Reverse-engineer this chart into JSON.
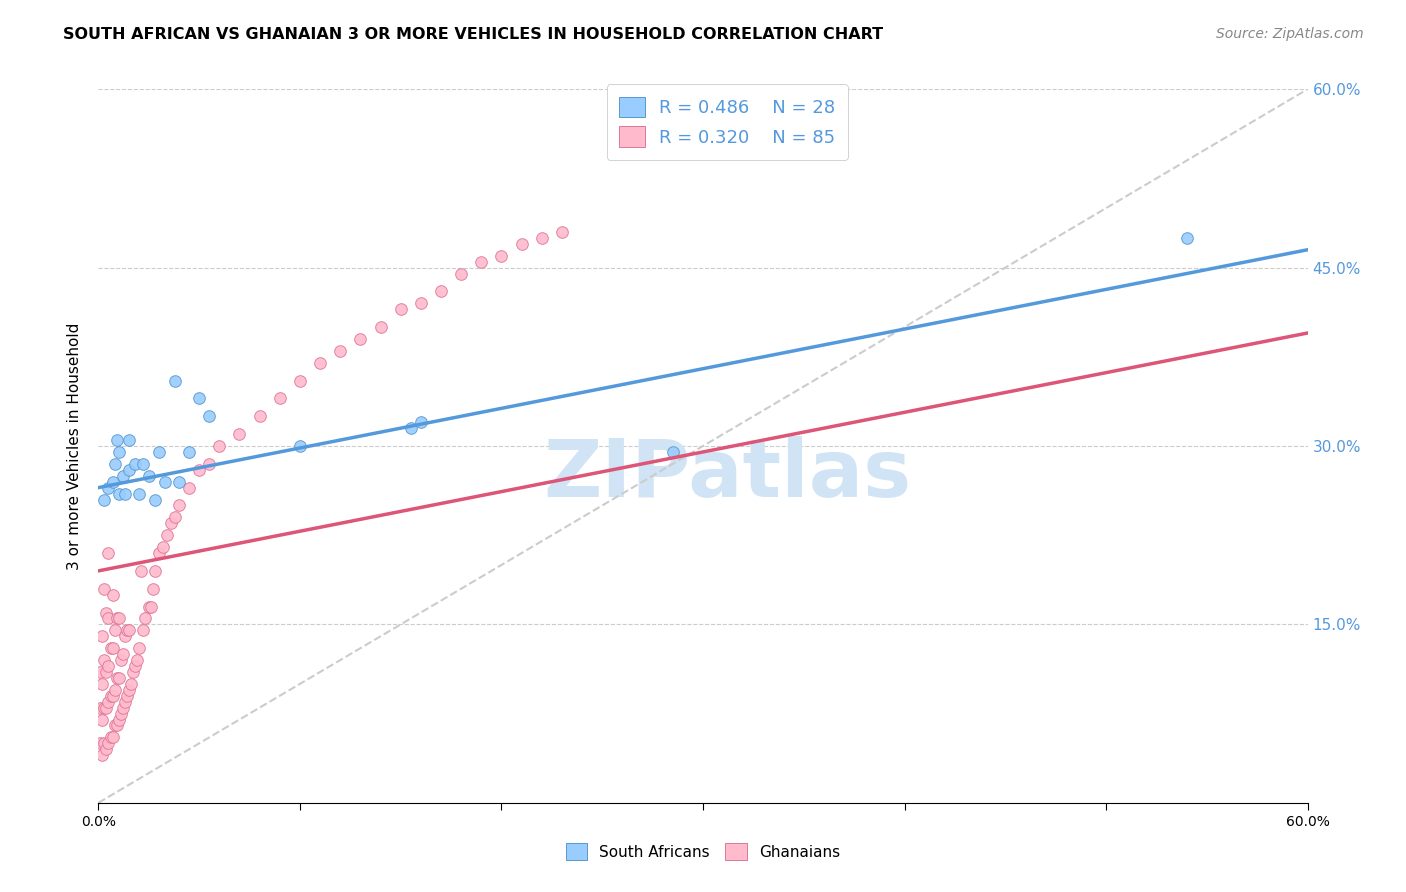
{
  "title": "SOUTH AFRICAN VS GHANAIAN 3 OR MORE VEHICLES IN HOUSEHOLD CORRELATION CHART",
  "source": "Source: ZipAtlas.com",
  "ylabel": "3 or more Vehicles in Household",
  "xmin": 0.0,
  "xmax": 0.6,
  "ymin": 0.0,
  "ymax": 0.6,
  "xticks": [
    0.0,
    0.1,
    0.2,
    0.3,
    0.4,
    0.5,
    0.6
  ],
  "xtick_labels": [
    "0.0%",
    "",
    "",
    "",
    "",
    "",
    "60.0%"
  ],
  "right_yticks": [
    0.0,
    0.15,
    0.3,
    0.45,
    0.6
  ],
  "right_ytick_labels": [
    "",
    "15.0%",
    "30.0%",
    "45.0%",
    "60.0%"
  ],
  "background_color": "#ffffff",
  "grid_color": "#cccccc",
  "sa_color": "#99ccff",
  "sa_edge_color": "#5599cc",
  "gh_color": "#ffbbcc",
  "gh_edge_color": "#dd7799",
  "sa_line_color": "#5599dd",
  "gh_line_color": "#dd5577",
  "diagonal_color": "#cccccc",
  "sa_R": 0.486,
  "sa_N": 28,
  "gh_R": 0.32,
  "gh_N": 85,
  "watermark_color": "#d0e4f5",
  "sa_line_start_y": 0.265,
  "sa_line_end_y": 0.465,
  "gh_line_start_y": 0.195,
  "gh_line_end_y": 0.395,
  "sa_scatter_x": [
    0.003,
    0.005,
    0.007,
    0.008,
    0.009,
    0.01,
    0.01,
    0.012,
    0.013,
    0.015,
    0.015,
    0.018,
    0.02,
    0.022,
    0.025,
    0.028,
    0.03,
    0.033,
    0.038,
    0.04,
    0.045,
    0.05,
    0.055,
    0.1,
    0.155,
    0.16,
    0.285,
    0.54
  ],
  "sa_scatter_y": [
    0.255,
    0.265,
    0.27,
    0.285,
    0.305,
    0.26,
    0.295,
    0.275,
    0.26,
    0.28,
    0.305,
    0.285,
    0.26,
    0.285,
    0.275,
    0.255,
    0.295,
    0.27,
    0.355,
    0.27,
    0.295,
    0.34,
    0.325,
    0.3,
    0.315,
    0.32,
    0.295,
    0.475
  ],
  "gh_scatter_x": [
    0.001,
    0.001,
    0.001,
    0.002,
    0.002,
    0.002,
    0.002,
    0.003,
    0.003,
    0.003,
    0.003,
    0.004,
    0.004,
    0.004,
    0.004,
    0.005,
    0.005,
    0.005,
    0.005,
    0.005,
    0.006,
    0.006,
    0.006,
    0.007,
    0.007,
    0.007,
    0.007,
    0.008,
    0.008,
    0.008,
    0.009,
    0.009,
    0.009,
    0.01,
    0.01,
    0.01,
    0.011,
    0.011,
    0.012,
    0.012,
    0.013,
    0.013,
    0.014,
    0.014,
    0.015,
    0.015,
    0.016,
    0.017,
    0.018,
    0.019,
    0.02,
    0.021,
    0.022,
    0.023,
    0.025,
    0.026,
    0.027,
    0.028,
    0.03,
    0.032,
    0.034,
    0.036,
    0.038,
    0.04,
    0.045,
    0.05,
    0.055,
    0.06,
    0.07,
    0.08,
    0.09,
    0.1,
    0.11,
    0.12,
    0.13,
    0.14,
    0.15,
    0.16,
    0.17,
    0.18,
    0.19,
    0.2,
    0.21,
    0.22,
    0.23
  ],
  "gh_scatter_y": [
    0.05,
    0.08,
    0.11,
    0.04,
    0.07,
    0.1,
    0.14,
    0.05,
    0.08,
    0.12,
    0.18,
    0.045,
    0.08,
    0.11,
    0.16,
    0.05,
    0.085,
    0.115,
    0.155,
    0.21,
    0.055,
    0.09,
    0.13,
    0.055,
    0.09,
    0.13,
    0.175,
    0.065,
    0.095,
    0.145,
    0.065,
    0.105,
    0.155,
    0.07,
    0.105,
    0.155,
    0.075,
    0.12,
    0.08,
    0.125,
    0.085,
    0.14,
    0.09,
    0.145,
    0.095,
    0.145,
    0.1,
    0.11,
    0.115,
    0.12,
    0.13,
    0.195,
    0.145,
    0.155,
    0.165,
    0.165,
    0.18,
    0.195,
    0.21,
    0.215,
    0.225,
    0.235,
    0.24,
    0.25,
    0.265,
    0.28,
    0.285,
    0.3,
    0.31,
    0.325,
    0.34,
    0.355,
    0.37,
    0.38,
    0.39,
    0.4,
    0.415,
    0.42,
    0.43,
    0.445,
    0.455,
    0.46,
    0.47,
    0.475,
    0.48
  ],
  "marker_size": 70
}
